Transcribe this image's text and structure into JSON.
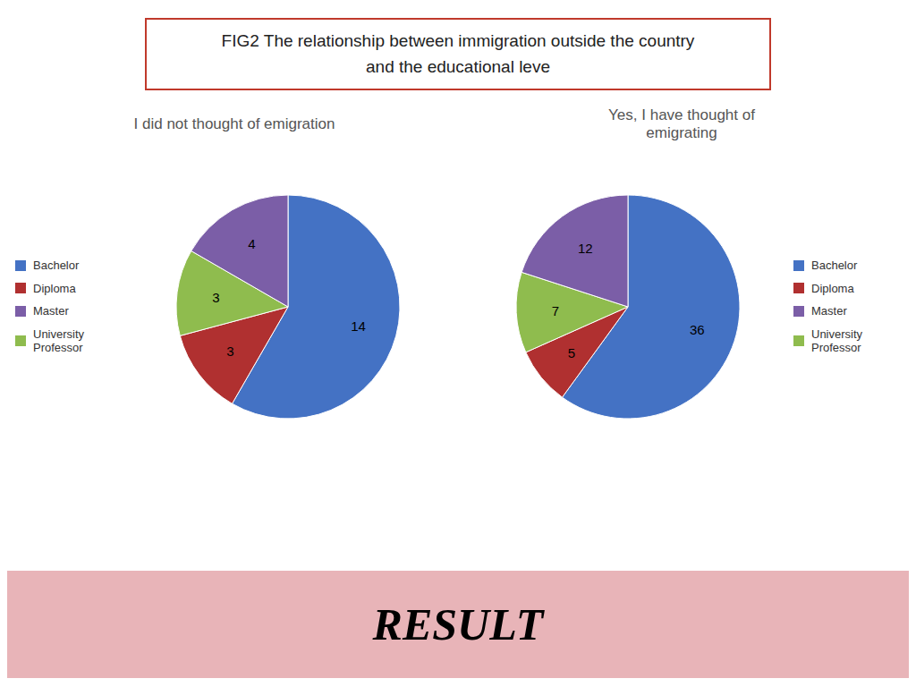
{
  "title": "FIG2 The relationship between immigration outside the country\nand the educational leve",
  "annotations": [
    "RESULT"
  ],
  "chart_data": [
    {
      "type": "pie",
      "title": "I did not thought of emigration",
      "categories": [
        "Bachelor",
        "Diploma",
        "University\nProfessor",
        "Master"
      ],
      "values": [
        14,
        3,
        3,
        4
      ],
      "colors": [
        "#4472c4",
        "#b03030",
        "#8fbc4e",
        "#7b5ea7"
      ],
      "data_labels": true,
      "legend": "left"
    },
    {
      "type": "pie",
      "title": "Yes, I have thought of\nemigrating",
      "categories": [
        "Bachelor",
        "Diploma",
        "University\nProfessor",
        "Master"
      ],
      "values": [
        36,
        5,
        7,
        12
      ],
      "colors": [
        "#4472c4",
        "#b03030",
        "#8fbc4e",
        "#7b5ea7"
      ],
      "data_labels": true,
      "legend": "right"
    }
  ]
}
